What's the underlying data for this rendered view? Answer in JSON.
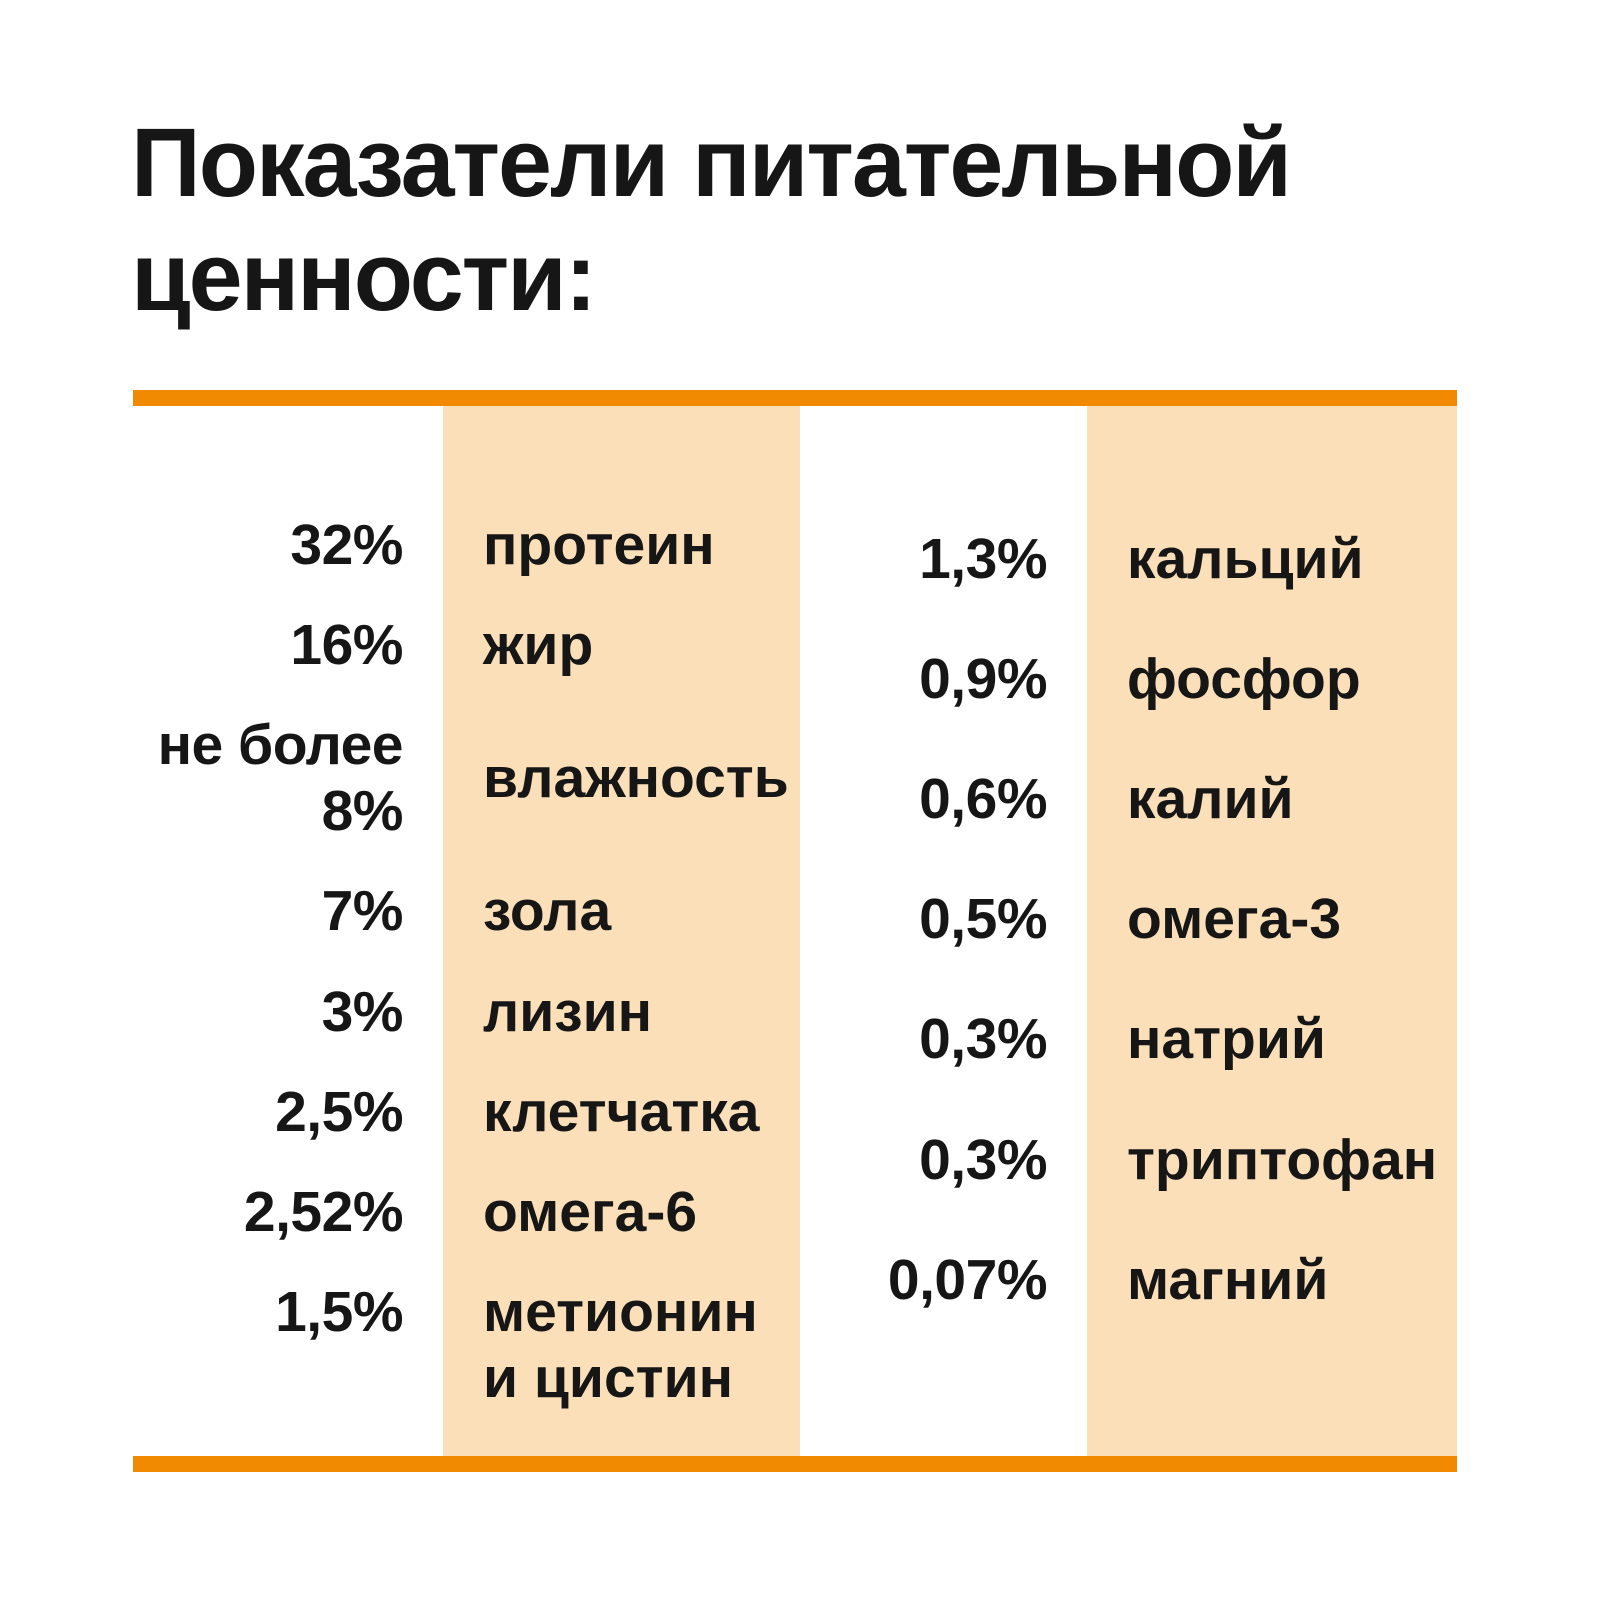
{
  "chart_data": {
    "type": "table",
    "title": "Показатели питательной ценности:",
    "value_unit": "%",
    "columns": [
      {
        "name": "left",
        "rows": [
          {
            "value": "32%",
            "label": "протеин"
          },
          {
            "value": "16%",
            "label": "жир"
          },
          {
            "value": "не более\n8%",
            "label": "влажность"
          },
          {
            "value": "7%",
            "label": "зола"
          },
          {
            "value": "3%",
            "label": "лизин"
          },
          {
            "value": "2,5%",
            "label": "клетчатка"
          },
          {
            "value": "2,52%",
            "label": "омега-6"
          },
          {
            "value": "1,5%",
            "label": "метионин\nи цистин"
          }
        ]
      },
      {
        "name": "right",
        "rows": [
          {
            "value": "1,3%",
            "label": "кальций"
          },
          {
            "value": "0,9%",
            "label": "фосфор"
          },
          {
            "value": "0,6%",
            "label": "калий"
          },
          {
            "value": "0,5%",
            "label": "омега-3"
          },
          {
            "value": "0,3%",
            "label": "натрий"
          },
          {
            "value": "0,3%",
            "label": "триптофан"
          },
          {
            "value": "0,07%",
            "label": "магний"
          }
        ]
      }
    ],
    "legend_position": "none",
    "grid": false
  },
  "colors": {
    "rule": "#F18A01",
    "band": "#FBDFB8",
    "text": "#161616",
    "background": "#FFFFFF"
  }
}
